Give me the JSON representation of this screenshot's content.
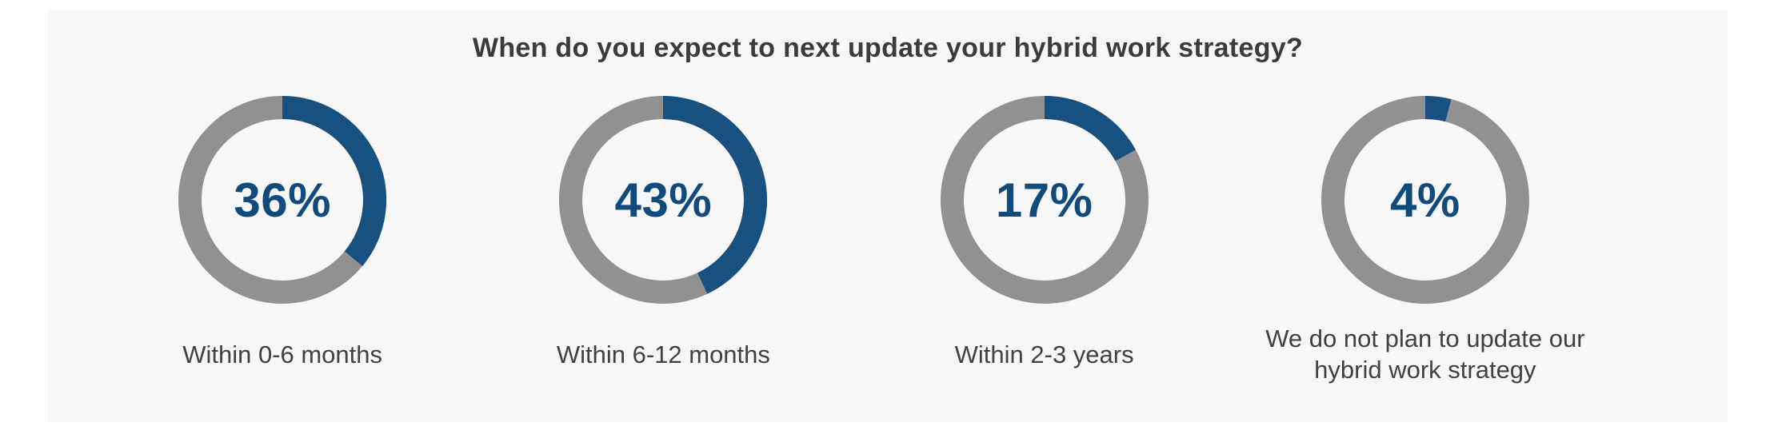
{
  "page": {
    "background": "#ffffff",
    "panel_background": "#f7f7f7"
  },
  "chart_data": {
    "type": "pie",
    "variant": "donut-small-multiples",
    "title": "When do you expect to next update your hybrid work strategy?",
    "categories": [
      "Within 0-6 months",
      "Within 6-12 months",
      "Within 2-3 years",
      "We do not plan to update our hybrid work strategy"
    ],
    "values": [
      36,
      43,
      17,
      4
    ],
    "value_labels": [
      "36%",
      "43%",
      "17%",
      "4%"
    ],
    "start_angle": "top",
    "direction": "clockwise",
    "legend": "none",
    "colors": {
      "filled": "#185180",
      "remainder": "#919194",
      "value_text": "#114a7c",
      "title_text": "#3b3b3d",
      "category_text": "#414144"
    }
  }
}
